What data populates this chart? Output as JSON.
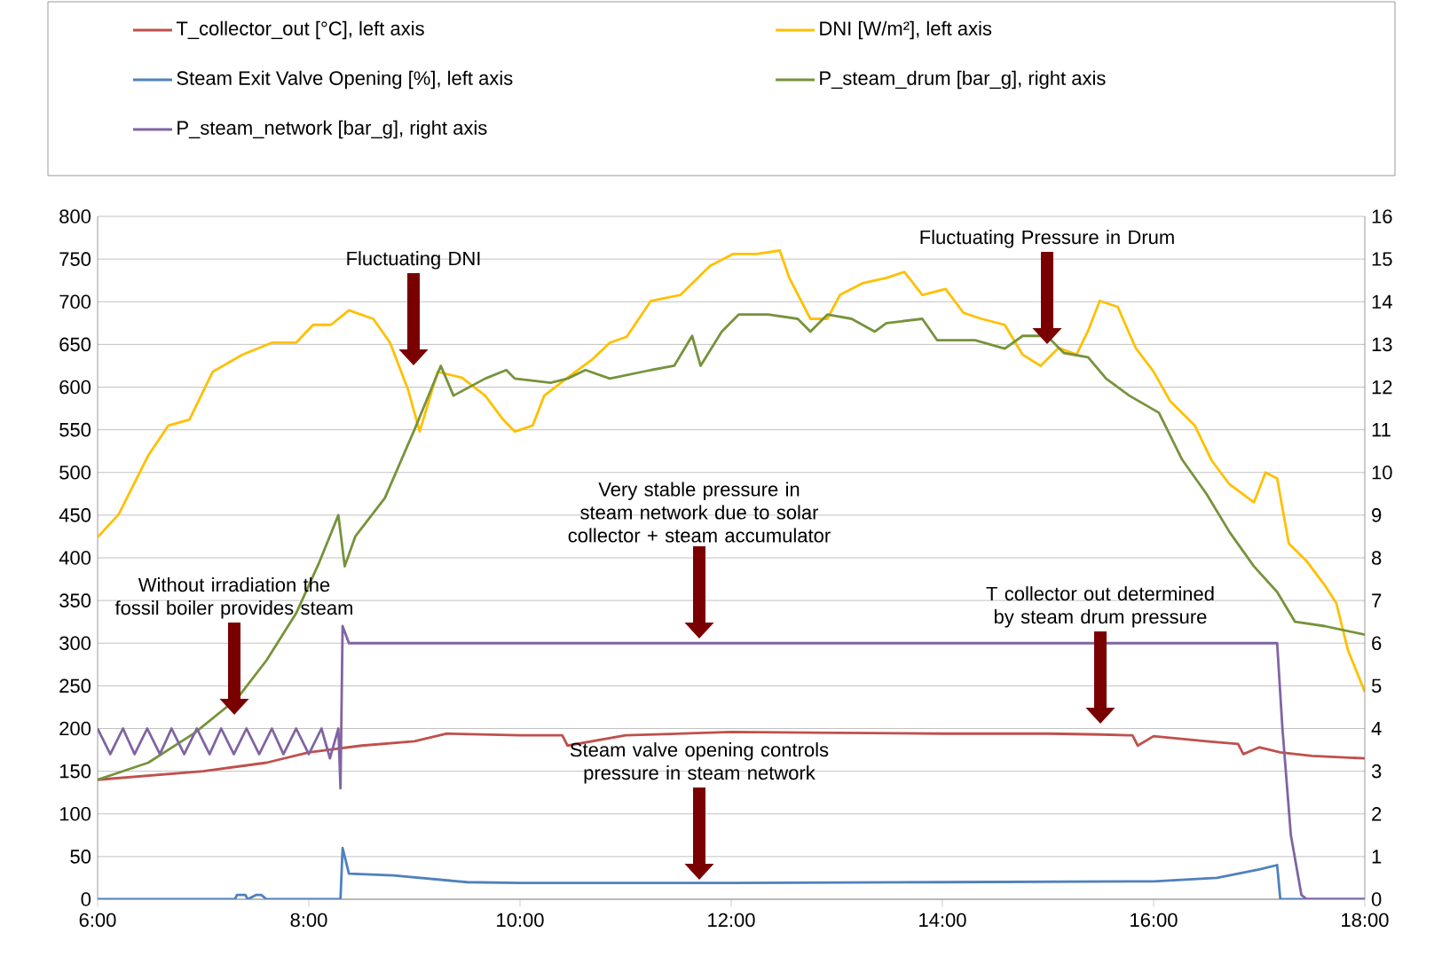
{
  "chart_data": {
    "type": "line",
    "xlim": [
      6,
      18
    ],
    "xticks": [
      {
        "value": 6,
        "label": "6:00"
      },
      {
        "value": 8,
        "label": "8:00"
      },
      {
        "value": 10,
        "label": "10:00"
      },
      {
        "value": 12,
        "label": "12:00"
      },
      {
        "value": 14,
        "label": "14:00"
      },
      {
        "value": 16,
        "label": "16:00"
      },
      {
        "value": 18,
        "label": "18:00"
      }
    ],
    "ylim": [
      0,
      800
    ],
    "yticks": [
      0,
      50,
      100,
      150,
      200,
      250,
      300,
      350,
      400,
      450,
      500,
      550,
      600,
      650,
      700,
      750,
      800
    ],
    "y2lim": [
      0,
      16
    ],
    "y2ticks": [
      0,
      1,
      2,
      3,
      4,
      5,
      6,
      7,
      8,
      9,
      10,
      11,
      12,
      13,
      14,
      15,
      16
    ],
    "grid": "y",
    "legend": "top",
    "series": [
      {
        "name": "T_collector_out [°C], left axis",
        "color": "#c0504d",
        "x": [
          6.0,
          7.0,
          7.6,
          8.0,
          8.5,
          9.0,
          9.3,
          10.0,
          10.4,
          10.45,
          11.0,
          12.0,
          13.0,
          14.0,
          15.0,
          15.5,
          15.8,
          15.85,
          16.0,
          16.5,
          16.8,
          16.85,
          17.0,
          17.2,
          17.5,
          18.0
        ],
        "values": [
          140,
          150,
          160,
          172,
          180,
          185,
          194,
          192,
          192,
          180,
          192,
          196,
          195,
          194,
          194,
          193,
          192,
          180,
          191,
          185,
          182,
          170,
          178,
          172,
          168,
          165
        ]
      },
      {
        "name": "DNI [W/m²], left axis",
        "color": "#ffc000",
        "x": [
          6.0,
          6.2,
          6.48,
          6.67,
          6.87,
          7.09,
          7.37,
          7.65,
          7.88,
          8.04,
          8.21,
          8.38,
          8.61,
          8.77,
          8.94,
          9.05,
          9.22,
          9.45,
          9.67,
          9.84,
          9.95,
          10.12,
          10.23,
          10.45,
          10.68,
          10.85,
          11.01,
          11.24,
          11.52,
          11.8,
          12.02,
          12.24,
          12.46,
          12.55,
          12.75,
          12.91,
          13.03,
          13.25,
          13.47,
          13.64,
          13.81,
          14.03,
          14.2,
          14.37,
          14.59,
          14.76,
          14.93,
          15.1,
          15.27,
          15.38,
          15.49,
          15.66,
          15.83,
          16.0,
          16.16,
          16.39,
          16.55,
          16.72,
          16.95,
          17.06,
          17.17,
          17.28,
          17.45,
          17.62,
          17.73,
          17.84,
          18.0
        ],
        "values": [
          424,
          451,
          520,
          555,
          562,
          618,
          638,
          652,
          652,
          673,
          673,
          690,
          680,
          652,
          597,
          548,
          618,
          611,
          590,
          562,
          548,
          555,
          590,
          611,
          632,
          652,
          659,
          701,
          708,
          742,
          756,
          756,
          760,
          728,
          680,
          680,
          708,
          722,
          728,
          735,
          708,
          715,
          687,
          680,
          673,
          638,
          625,
          646,
          638,
          666,
          701,
          694,
          646,
          618,
          583,
          555,
          514,
          486,
          465,
          500,
          493,
          417,
          396,
          368,
          347,
          292,
          243
        ]
      },
      {
        "name": "Steam Exit Valve Opening [%], left axis",
        "color": "#4f81bd",
        "x": [
          6.0,
          7.3,
          7.32,
          7.4,
          7.42,
          7.5,
          7.55,
          7.6,
          8.3,
          8.32,
          8.38,
          8.8,
          9.5,
          10.0,
          12.0,
          14.0,
          16.0,
          16.6,
          17.0,
          17.17,
          17.2,
          18.0
        ],
        "values": [
          0,
          0,
          5,
          5,
          0,
          5,
          5,
          0,
          0,
          60,
          30,
          28,
          20,
          19,
          19,
          20,
          21,
          25,
          35,
          40,
          0,
          0
        ]
      },
      {
        "name": "P_steam_drum [bar_g], right axis",
        "color": "#77933c",
        "axis": "y2",
        "x": [
          6.0,
          6.48,
          6.92,
          7.32,
          7.6,
          7.88,
          8.1,
          8.28,
          8.34,
          8.44,
          8.72,
          9.0,
          9.25,
          9.37,
          9.67,
          9.87,
          9.95,
          10.29,
          10.45,
          10.62,
          10.85,
          11.24,
          11.46,
          11.63,
          11.71,
          11.91,
          12.07,
          12.35,
          12.63,
          12.75,
          12.91,
          13.14,
          13.36,
          13.47,
          13.81,
          13.95,
          14.31,
          14.59,
          14.76,
          14.99,
          15.15,
          15.38,
          15.55,
          15.77,
          16.05,
          16.27,
          16.5,
          16.72,
          16.95,
          17.17,
          17.34,
          17.62,
          18.0
        ],
        "values": [
          2.8,
          3.2,
          3.9,
          4.7,
          5.6,
          6.7,
          7.9,
          9.0,
          7.8,
          8.5,
          9.4,
          11.0,
          12.5,
          11.8,
          12.2,
          12.4,
          12.2,
          12.1,
          12.2,
          12.4,
          12.2,
          12.4,
          12.5,
          13.2,
          12.5,
          13.3,
          13.7,
          13.7,
          13.6,
          13.3,
          13.7,
          13.6,
          13.3,
          13.5,
          13.6,
          13.1,
          13.1,
          12.9,
          13.2,
          13.2,
          12.8,
          12.7,
          12.2,
          11.8,
          11.4,
          10.3,
          9.5,
          8.6,
          7.8,
          7.2,
          6.5,
          6.4,
          6.2
        ]
      },
      {
        "name": "P_steam_network [bar_g], right axis",
        "color": "#8064a2",
        "axis": "y2",
        "x": [
          6.0,
          6.12,
          6.24,
          6.35,
          6.47,
          6.59,
          6.7,
          6.82,
          6.94,
          7.06,
          7.17,
          7.29,
          7.41,
          7.53,
          7.65,
          7.76,
          7.88,
          8.0,
          8.12,
          8.2,
          8.28,
          8.3,
          8.32,
          8.38,
          17.17,
          17.22,
          17.3,
          17.4,
          17.45,
          18.0
        ],
        "values": [
          4.0,
          3.4,
          4.0,
          3.4,
          4.0,
          3.4,
          4.0,
          3.4,
          4.0,
          3.4,
          4.0,
          3.4,
          4.0,
          3.4,
          4.0,
          3.4,
          4.0,
          3.4,
          4.0,
          3.3,
          4.0,
          2.6,
          6.4,
          6.0,
          6.0,
          4.0,
          1.5,
          0.1,
          0,
          0
        ]
      }
    ],
    "annotations": [
      "Fluctuating DNI",
      "Fluctuating Pressure in Drum",
      "Very stable pressure in steam network due to solar collector + steam accumulator",
      "Without irradiation the fossil boiler provides steam",
      "T collector out determined by steam drum pressure",
      "Steam valve opening controls pressure in steam network"
    ]
  }
}
